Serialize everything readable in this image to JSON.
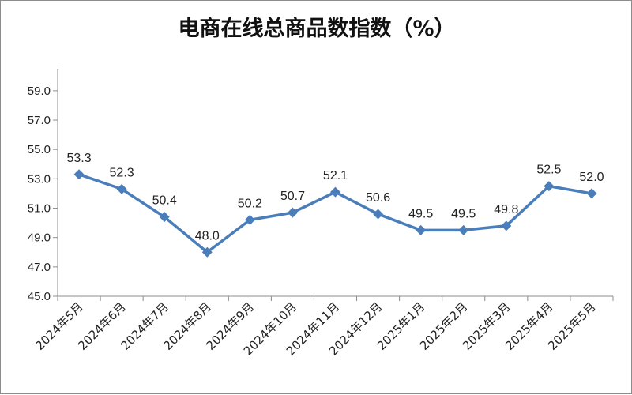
{
  "chart_data": {
    "type": "line",
    "title": "电商在线总商品数指数（%）",
    "categories": [
      "2024年5月",
      "2024年6月",
      "2024年7月",
      "2024年8月",
      "2024年9月",
      "2024年10月",
      "2024年11月",
      "2024年12月",
      "2025年1月",
      "2025年2月",
      "2025年3月",
      "2025年4月",
      "2025年5月"
    ],
    "values": [
      53.3,
      52.3,
      50.4,
      48.0,
      50.2,
      50.7,
      52.1,
      50.6,
      49.5,
      49.5,
      49.8,
      52.5,
      52.0
    ],
    "y_ticks": [
      "45.0",
      "47.0",
      "49.0",
      "51.0",
      "53.0",
      "55.0",
      "57.0",
      "59.0"
    ],
    "ylim": [
      45.0,
      60.5
    ],
    "grid": false,
    "legend": "none",
    "colors": {
      "line": "#4a7ebb",
      "axis": "#8c8c8c"
    }
  }
}
